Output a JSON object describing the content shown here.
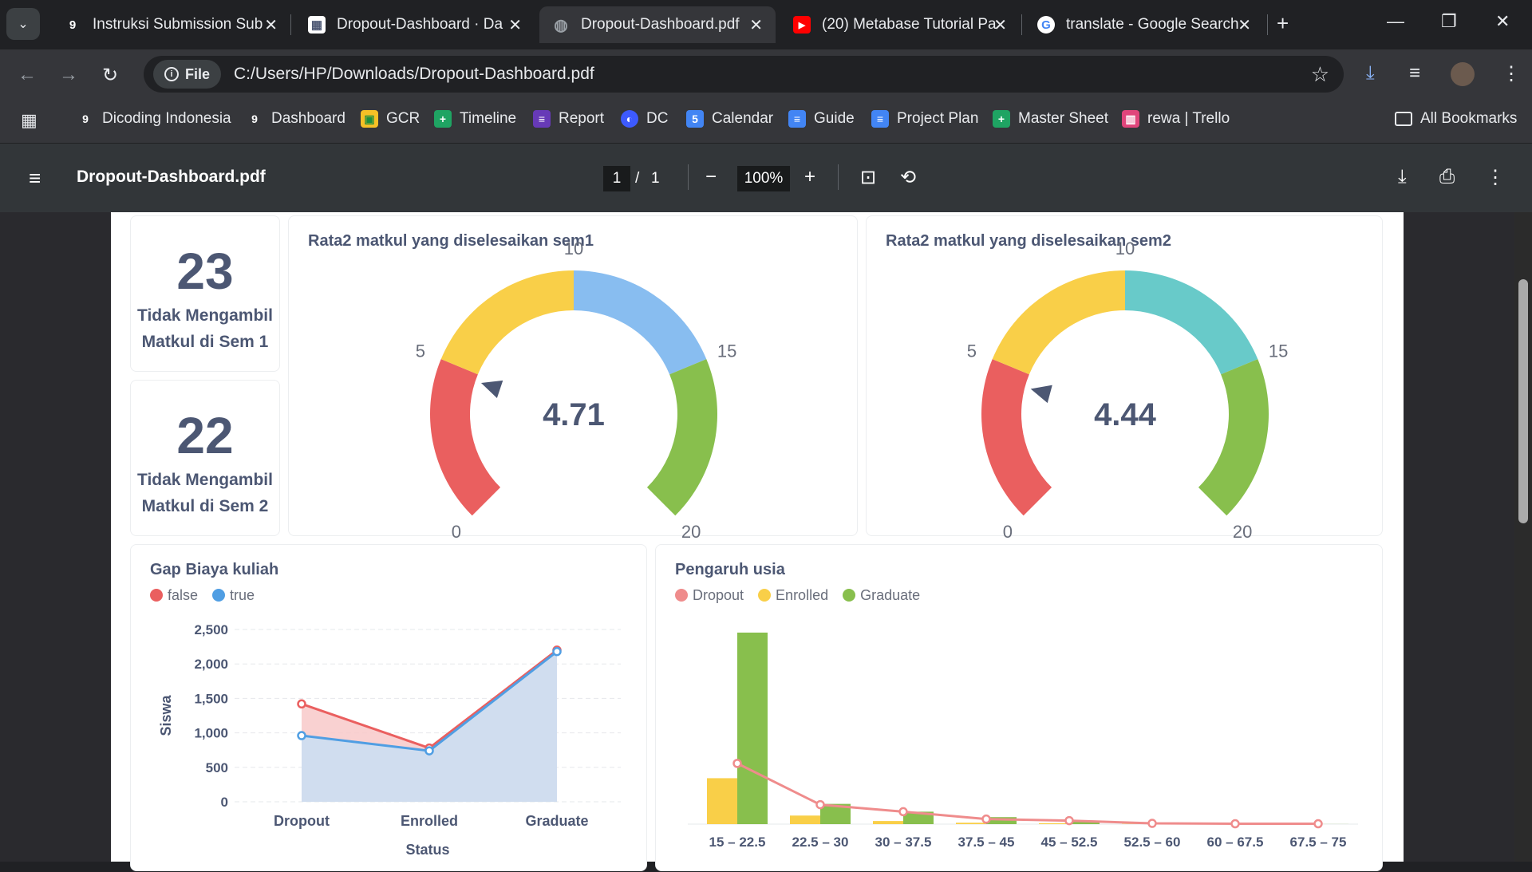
{
  "tabs": [
    {
      "title": "Instruksi Submission Sub",
      "fav": "9"
    },
    {
      "title": "Dropout-Dashboard · Da",
      "fav": "▦"
    },
    {
      "title": "Dropout-Dashboard.pdf",
      "fav": "◍"
    },
    {
      "title": "(20) Metabase Tutorial Pa",
      "fav": "▶"
    },
    {
      "title": "translate - Google Search",
      "fav": "G"
    }
  ],
  "address": {
    "chip": "File",
    "url": "C:/Users/HP/Downloads/Dropout-Dashboard.pdf"
  },
  "bookmarks": [
    "Dicoding Indonesia",
    "Dashboard",
    "GCR",
    "Timeline",
    "Report",
    "DC",
    "Calendar",
    "Guide",
    "Project Plan",
    "Master Sheet",
    "rewa | Trello",
    "All Bookmarks"
  ],
  "pdf": {
    "title": "Dropout-Dashboard.pdf",
    "page": "1",
    "total": "1",
    "zoom": "100%"
  },
  "stats": [
    {
      "value": "23",
      "label1": "Tidak Mengambil",
      "label2": "Matkul di Sem 1"
    },
    {
      "value": "22",
      "label1": "Tidak Mengambil",
      "label2": "Matkul di Sem 2"
    }
  ],
  "colors": {
    "red": "#ea5f5f",
    "yellow": "#f9cf48",
    "blue": "#88bdf0",
    "teal": "#68cac9",
    "green": "#88bf4d"
  },
  "chart_data": [
    {
      "type": "gauge",
      "title": "Rata2 matkul yang diselesaikan sem1",
      "value": 4.71,
      "display": "4.71",
      "range": [
        0,
        20
      ],
      "ticks": [
        "0",
        "5",
        "10",
        "15",
        "20"
      ],
      "segments": [
        {
          "from": 0,
          "to": 5,
          "color": "#ea5f5f"
        },
        {
          "from": 5,
          "to": 10,
          "color": "#f9cf48"
        },
        {
          "from": 10,
          "to": 15,
          "color": "#88bdf0"
        },
        {
          "from": 15,
          "to": 20,
          "color": "#88bf4d"
        }
      ]
    },
    {
      "type": "gauge",
      "title": "Rata2 matkul yang diselesaikan sem2",
      "value": 4.44,
      "display": "4.44",
      "range": [
        0,
        20
      ],
      "ticks": [
        "0",
        "5",
        "10",
        "15",
        "20"
      ],
      "segments": [
        {
          "from": 0,
          "to": 5,
          "color": "#ea5f5f"
        },
        {
          "from": 5,
          "to": 10,
          "color": "#f9cf48"
        },
        {
          "from": 10,
          "to": 15,
          "color": "#68cac9"
        },
        {
          "from": 15,
          "to": 20,
          "color": "#88bf4d"
        }
      ]
    },
    {
      "type": "area",
      "title": "Gap Biaya kuliah",
      "categories": [
        "Dropout",
        "Enrolled",
        "Graduate"
      ],
      "series": [
        {
          "name": "false",
          "values": [
            1420,
            780,
            2200
          ],
          "color": "#ea5f5f"
        },
        {
          "name": "true",
          "values": [
            960,
            740,
            2180
          ],
          "color": "#509ee3"
        }
      ],
      "xlabel": "Status",
      "ylabel": "Siswa",
      "ylim": [
        0,
        2500
      ],
      "yticks": [
        "0",
        "500",
        "1,000",
        "1,500",
        "2,000",
        "2,500"
      ],
      "legend": "top-left",
      "grid": true
    },
    {
      "type": "bar",
      "title": "Pengaruh usia",
      "categories": [
        "15 – 22.5",
        "22.5 – 30",
        "30 – 37.5",
        "37.5 – 45",
        "45 – 52.5",
        "52.5 – 60",
        "60 – 67.5",
        "67.5 – 75"
      ],
      "series": [
        {
          "name": "Dropout",
          "kind": "line",
          "values": [
            780,
            250,
            160,
            65,
            45,
            10,
            5,
            5
          ],
          "color": "#ef8c8c"
        },
        {
          "name": "Enrolled",
          "kind": "bar",
          "values": [
            590,
            110,
            40,
            18,
            12,
            3,
            1,
            0
          ],
          "color": "#f9cf48"
        },
        {
          "name": "Graduate",
          "kind": "bar",
          "values": [
            2460,
            260,
            160,
            90,
            35,
            8,
            2,
            1
          ],
          "color": "#88bf4d"
        }
      ],
      "ylim": [
        0,
        2500
      ],
      "legend": "top-left"
    }
  ]
}
